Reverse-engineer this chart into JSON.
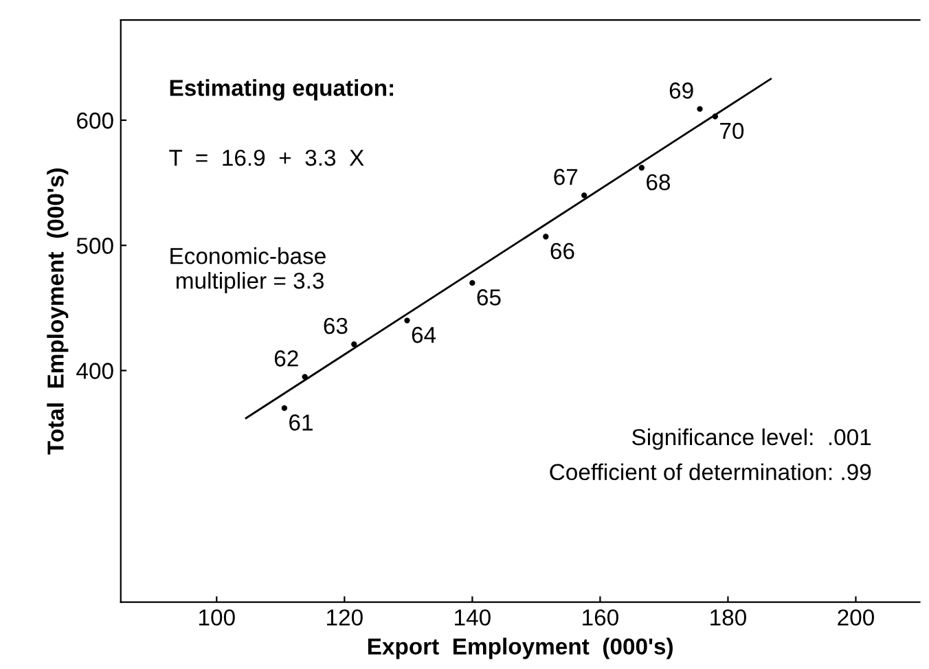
{
  "chart_data": {
    "type": "scatter",
    "xlabel": "Export  Employment  (000's)",
    "ylabel": "Total  Employment  (000's)",
    "series": [
      {
        "color": "#000000",
        "marker": "circle",
        "x": [
          110.6,
          113.8,
          121.5,
          129.8,
          140,
          151.5,
          157.5,
          166.5,
          175.6,
          178
        ],
        "values": [
          370,
          395,
          421,
          440,
          470,
          507,
          540,
          562,
          609,
          603
        ]
      },
      {
        "type": "line",
        "color": "#000000",
        "line_style": "solid",
        "x": [
          104.6,
          186.7
        ],
        "values": [
          362,
          633
        ]
      }
    ],
    "annotations": [
      {
        "text": "61",
        "x": 110.6,
        "y": 370
      },
      {
        "text": "62",
        "x": 113.8,
        "y": 395
      },
      {
        "text": "63",
        "x": 121.5,
        "y": 421
      },
      {
        "text": "64",
        "x": 129.8,
        "y": 440
      },
      {
        "text": "65",
        "x": 140,
        "y": 470
      },
      {
        "text": "66",
        "x": 151.5,
        "y": 507
      },
      {
        "text": "67",
        "x": 157.5,
        "y": 540
      },
      {
        "text": "68",
        "x": 166.5,
        "y": 562
      },
      {
        "text": "69",
        "x": 175.6,
        "y": 609
      },
      {
        "text": "70",
        "x": 178,
        "y": 603
      },
      "Estimating equation:",
      "T  =  16.9  +  3.3  X",
      "Economic-base\n multiplier = 3.3",
      "Significance level:  .001",
      "Coefficient of determination: .99"
    ],
    "xlim": [
      85,
      210
    ],
    "ylim": [
      215,
      680
    ],
    "xticks": [
      100,
      120,
      140,
      160,
      180,
      200
    ],
    "yticks": [
      400,
      500,
      600
    ],
    "grid": false,
    "legend": false
  }
}
